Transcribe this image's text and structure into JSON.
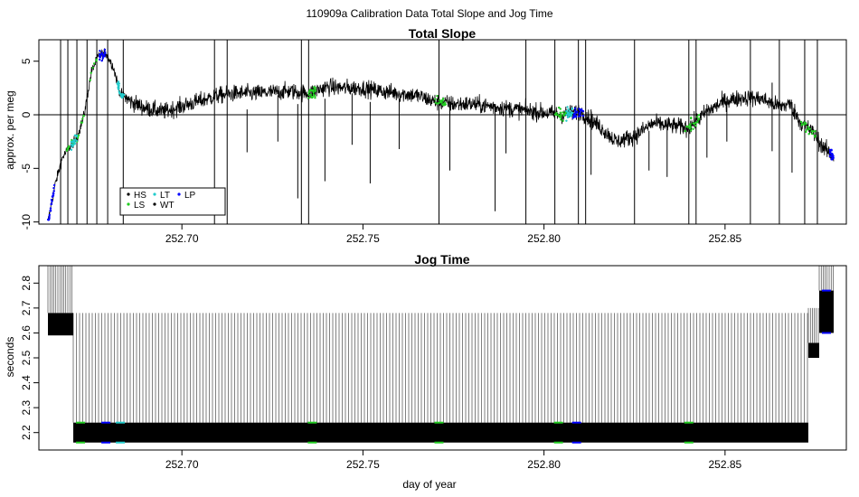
{
  "figure": {
    "suptitle": "110909a   Calibration Data Total Slope and Jog Time"
  },
  "colors": {
    "series": {
      "HS": "#000000",
      "LS": "#22cc22",
      "LT": "#22cccc",
      "WT": "#000000",
      "LP": "#0000ff"
    },
    "trace": "#000000",
    "zero_line": "#000000",
    "box": "#000000",
    "background": "#ffffff"
  },
  "chart_data": [
    {
      "type": "line",
      "title": "Total Slope",
      "xlabel": "",
      "ylabel": "approx. per meg",
      "xlim": [
        252.6605,
        252.8835
      ],
      "ylim": [
        -10.2,
        7.0
      ],
      "x_ticks": [
        252.7,
        252.75,
        252.8,
        252.85
      ],
      "x_tick_labels": [
        "252.70",
        "252.75",
        "252.80",
        "252.85"
      ],
      "y_ticks": [
        -10,
        -5,
        0,
        5
      ],
      "y_tick_labels": [
        "-10",
        "-5",
        "0",
        "5"
      ],
      "reference_line_y": 0,
      "legend": {
        "placement": "bottom-left",
        "entries": [
          "HS",
          "LS",
          "LT",
          "WT",
          "LP"
        ]
      },
      "series": [
        {
          "name": "Total Slope",
          "x": [
            252.663,
            252.665,
            252.667,
            252.669,
            252.671,
            252.673,
            252.675,
            252.677,
            252.679,
            252.681,
            252.683,
            252.686,
            252.69,
            252.695,
            252.7,
            252.705,
            252.71,
            252.715,
            252.72,
            252.725,
            252.73,
            252.735,
            252.74,
            252.745,
            252.75,
            252.755,
            252.76,
            252.765,
            252.77,
            252.775,
            252.78,
            252.785,
            252.79,
            252.795,
            252.8,
            252.805,
            252.81,
            252.815,
            252.82,
            252.825,
            252.83,
            252.835,
            252.84,
            252.845,
            252.85,
            252.855,
            252.86,
            252.865,
            252.868,
            252.871,
            252.874,
            252.877,
            252.88
          ],
          "y": [
            -10.0,
            -6.5,
            -4.0,
            -3.0,
            -2.2,
            0.0,
            4.0,
            5.5,
            5.8,
            4.5,
            2.0,
            1.2,
            0.6,
            0.3,
            0.8,
            1.3,
            1.8,
            2.0,
            2.0,
            2.1,
            2.2,
            2.0,
            2.6,
            2.5,
            2.5,
            2.2,
            2.0,
            1.8,
            1.2,
            1.0,
            1.0,
            0.8,
            0.6,
            0.4,
            0.2,
            0.0,
            0.3,
            -1.0,
            -2.5,
            -2.0,
            -0.8,
            -1.0,
            -1.2,
            0.3,
            1.3,
            1.6,
            1.5,
            0.8,
            1.0,
            -0.8,
            -1.5,
            -3.0,
            -4.0
          ]
        }
      ]
    },
    {
      "type": "line",
      "title": "Jog Time",
      "xlabel": "day of year",
      "ylabel": "seconds",
      "xlim": [
        252.6605,
        252.8835
      ],
      "ylim": [
        2.13,
        2.87
      ],
      "x_ticks": [
        252.7,
        252.75,
        252.8,
        252.85
      ],
      "x_tick_labels": [
        "252.70",
        "252.75",
        "252.80",
        "252.85"
      ],
      "y_ticks": [
        2.2,
        2.3,
        2.4,
        2.5,
        2.6,
        2.7,
        2.8
      ],
      "y_tick_labels": [
        "2.2",
        "2.3",
        "2.4",
        "2.5",
        "2.6",
        "2.7",
        "2.8"
      ],
      "series": [
        {
          "name": "Jog Time",
          "segments": [
            {
              "x_range": [
                252.663,
                252.67
              ],
              "low": 2.59,
              "high": 2.68,
              "spike_top": 2.87
            },
            {
              "x_range": [
                252.67,
                252.873
              ],
              "low": 2.16,
              "high": 2.24,
              "spike_top": 2.68
            },
            {
              "x_range": [
                252.873,
                252.876
              ],
              "low": 2.5,
              "high": 2.56,
              "spike_top": 2.7
            },
            {
              "x_range": [
                252.876,
                252.88
              ],
              "low": 2.6,
              "high": 2.77,
              "spike_top": 2.87
            }
          ]
        }
      ]
    }
  ]
}
